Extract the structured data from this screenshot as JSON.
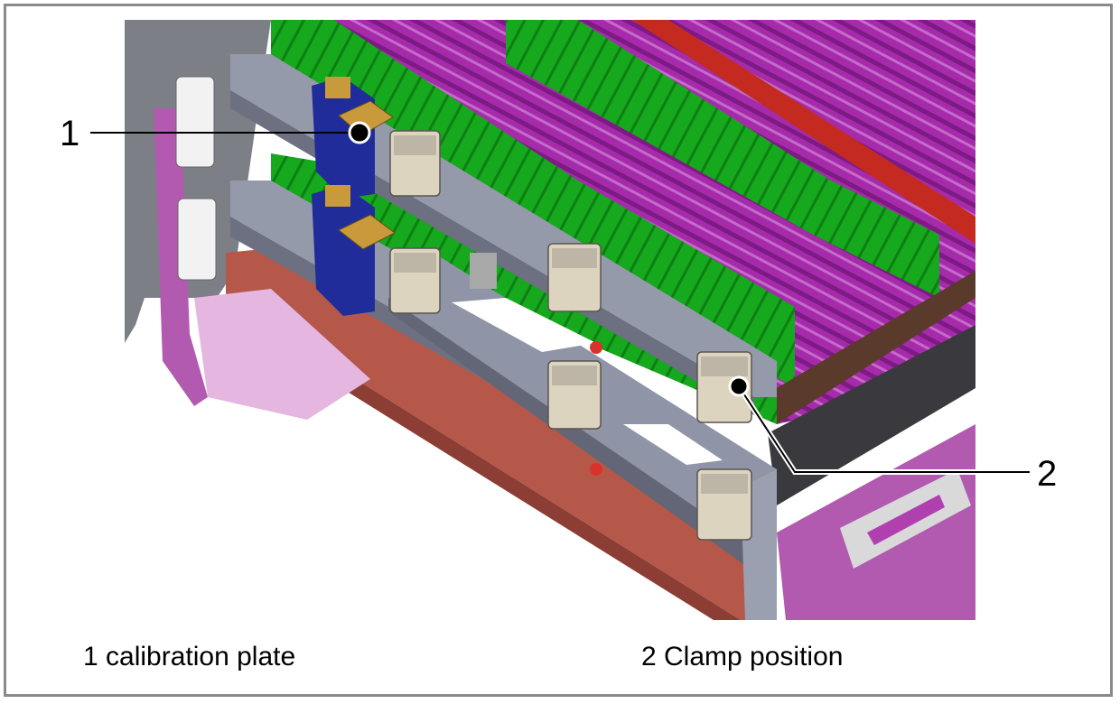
{
  "callouts": [
    {
      "number": "1",
      "caption": "1 calibration plate"
    },
    {
      "number": "2",
      "caption": "2 Clamp position"
    }
  ],
  "colors": {
    "frame": "#8a8a8a",
    "rail_gray": "#8f95a6",
    "plate_green": "#17a81c",
    "rack_purple": "#a02aa8",
    "calibration_plate_gold": "#c99a3c",
    "bracket_blue": "#1f2c9a",
    "base_red": "#b5584a",
    "frame_magenta": "#b25ab0",
    "clamp_beige": "#ddd4c0"
  }
}
